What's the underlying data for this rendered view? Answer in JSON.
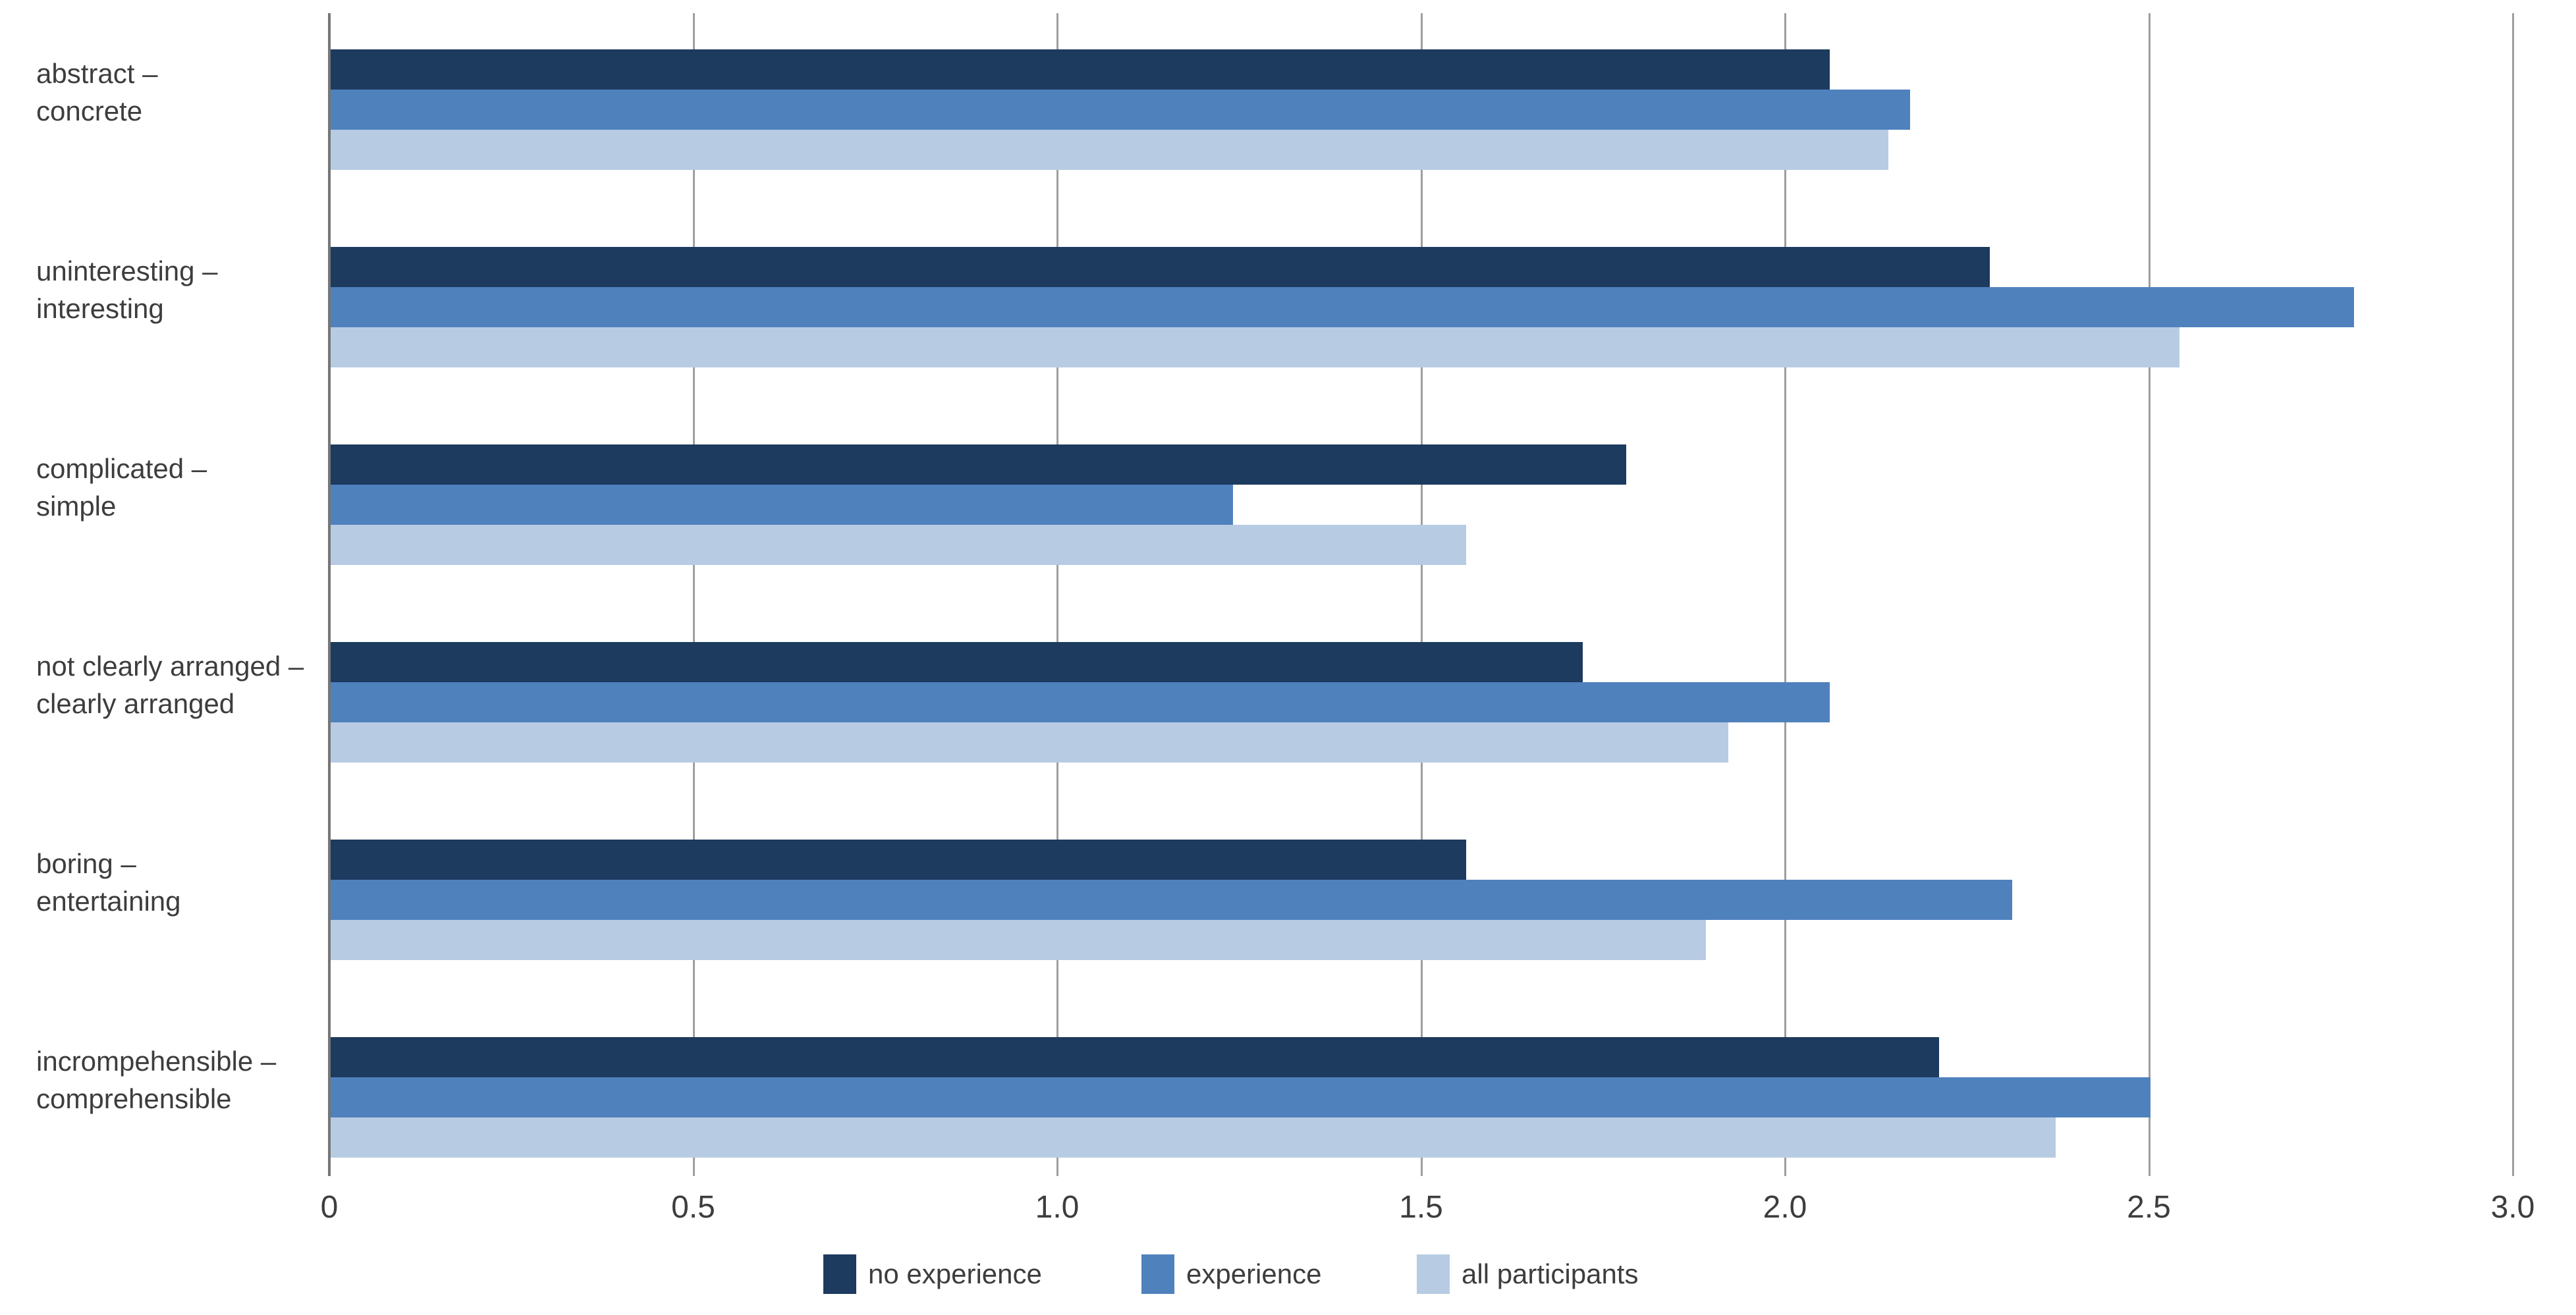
{
  "chart_data": {
    "type": "bar",
    "orientation": "horizontal",
    "title": "",
    "xlabel": "",
    "ylabel": "",
    "xlim": [
      0,
      3.0
    ],
    "grid": true,
    "legend_position": "bottom",
    "x_ticks": [
      {
        "value": 0.0,
        "label": "0"
      },
      {
        "value": 0.5,
        "label": "0.5"
      },
      {
        "value": 1.0,
        "label": "1.0"
      },
      {
        "value": 1.5,
        "label": "1.5"
      },
      {
        "value": 2.0,
        "label": "2.0"
      },
      {
        "value": 2.5,
        "label": "2.5"
      },
      {
        "value": 3.0,
        "label": "3.0"
      }
    ],
    "categories": [
      {
        "line1": "abstract –",
        "line2": "concrete"
      },
      {
        "line1": "uninteresting –",
        "line2": "interesting"
      },
      {
        "line1": "complicated –",
        "line2": "simple"
      },
      {
        "line1": "not clearly arranged –",
        "line2": "clearly arranged"
      },
      {
        "line1": "boring –",
        "line2": "entertaining"
      },
      {
        "line1": "incrompehensible –",
        "line2": "comprehensible"
      }
    ],
    "series": [
      {
        "name": "no experience",
        "color": "#1d3a5f",
        "values": [
          2.06,
          2.28,
          1.78,
          1.72,
          1.56,
          2.21
        ]
      },
      {
        "name": "experience",
        "color": "#4f81bd",
        "values": [
          2.17,
          2.78,
          1.24,
          2.06,
          2.31,
          2.5
        ]
      },
      {
        "name": "all participants",
        "color": "#b7cbe3",
        "values": [
          2.14,
          2.54,
          1.56,
          1.92,
          1.89,
          2.37
        ]
      }
    ]
  },
  "styles": {
    "text_color": "#3d3d3d",
    "gridline_color": "#9e9e9e",
    "axis_color": "#767676",
    "background": "#ffffff"
  }
}
